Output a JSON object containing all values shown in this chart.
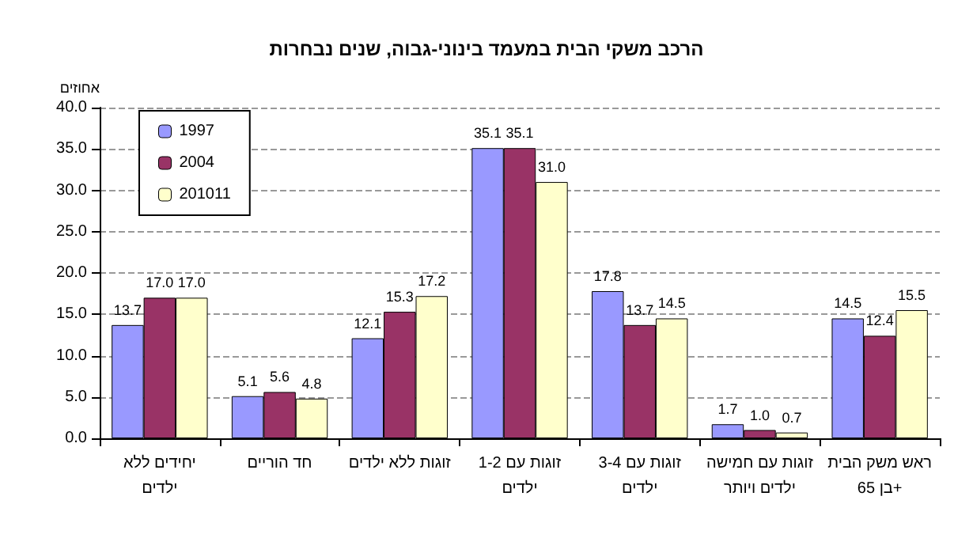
{
  "chart_data": {
    "type": "bar",
    "title": "הרכב משקי הבית במעמד בינוני-גבוה, שנים נבחרות",
    "ylabel": "אחוזים",
    "categories": [
      "יחידים ללא\nילדים",
      "חד הוריים",
      "זוגות ללא ילדים",
      "זוגות עם 1-2\nילדים",
      "זוגות עם 3-4\nילדים",
      "זוגות עם חמישה\nילדים ויותר",
      "ראש משק הבית\nבן 65+"
    ],
    "series": [
      {
        "name": "1997",
        "color": "#9999ff",
        "values": [
          13.7,
          5.1,
          12.1,
          35.1,
          17.8,
          1.7,
          14.5
        ],
        "value_labels": [
          "13.7",
          "5.1",
          "12.1",
          "35.1",
          "17.8",
          "1.7",
          "14.5"
        ]
      },
      {
        "name": "2004",
        "color": "#993366",
        "values": [
          17.0,
          5.6,
          15.3,
          35.1,
          13.7,
          1.0,
          12.4
        ],
        "value_labels": [
          "17.0",
          "5.6",
          "15.3",
          "35.1",
          "13.7",
          "1.0",
          "12.4"
        ]
      },
      {
        "name": "201011",
        "color": "#ffffcc",
        "values": [
          17.0,
          4.8,
          17.2,
          31.0,
          14.5,
          0.7,
          15.5
        ],
        "value_labels": [
          "17.0",
          "4.8",
          "17.2",
          "31.0",
          "14.5",
          "0.7",
          "15.5"
        ]
      }
    ],
    "ylim": [
      0,
      40
    ],
    "yticks": [
      "0.0",
      "5.0",
      "10.0",
      "15.0",
      "20.0",
      "25.0",
      "30.0",
      "35.0",
      "40.0"
    ],
    "grid": "y",
    "legend": "top left"
  }
}
